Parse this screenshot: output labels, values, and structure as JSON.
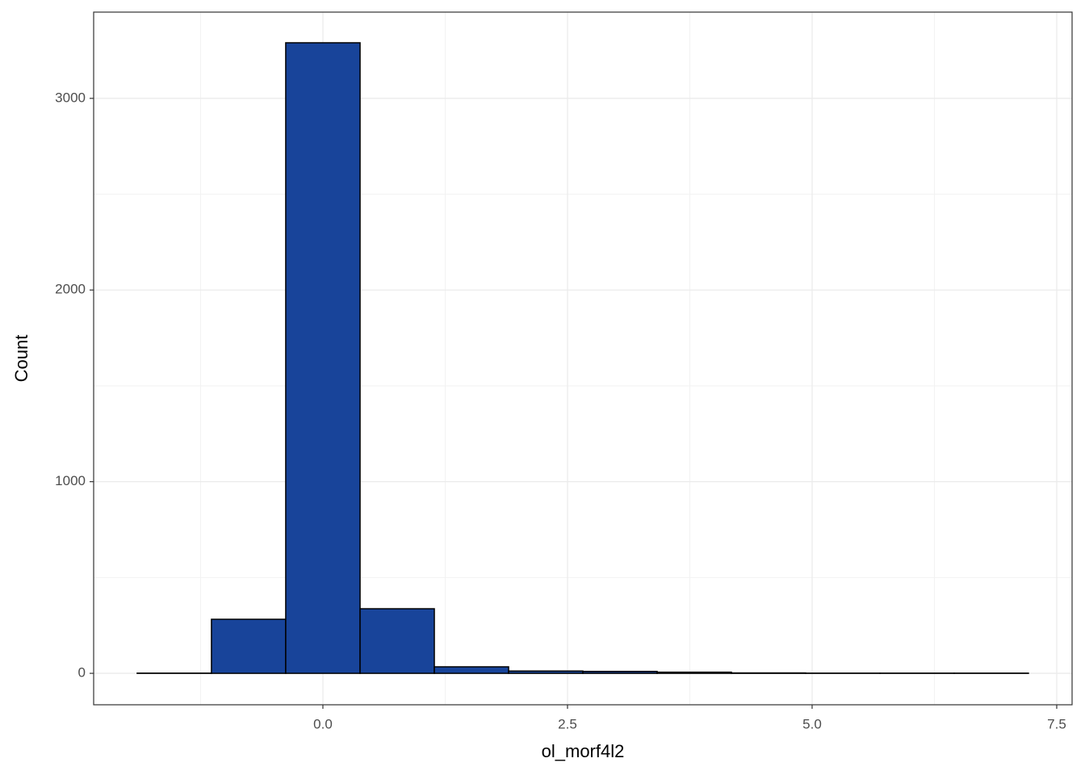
{
  "chart_data": {
    "type": "histogram",
    "x_label": "ol_morf4l2",
    "y_label": "Count",
    "bins": [
      -1.898,
      -1.139,
      -0.38,
      0.38,
      1.139,
      1.898,
      2.657,
      3.416,
      4.175,
      4.934,
      5.693,
      6.452,
      7.211
    ],
    "counts": [
      1,
      282,
      3290,
      337,
      34,
      12,
      10,
      6,
      2,
      1,
      1,
      1
    ],
    "color": "#18449a",
    "edge_color": "#000000",
    "xlim": [
      -2.343,
      7.657
    ],
    "ylim": [
      -164,
      3450
    ],
    "xticks": [
      {
        "value": 0,
        "label": "0.0"
      },
      {
        "value": 2.5,
        "label": "2.5"
      },
      {
        "value": 5,
        "label": "5.0"
      },
      {
        "value": 7.5,
        "label": "7.5"
      }
    ],
    "yticks": [
      0,
      1000,
      2000,
      3000
    ],
    "minor_xticks": [
      -1.25,
      1.25,
      3.75,
      6.25
    ],
    "minor_yticks": [
      500,
      1500,
      2500
    ],
    "grid": true
  }
}
